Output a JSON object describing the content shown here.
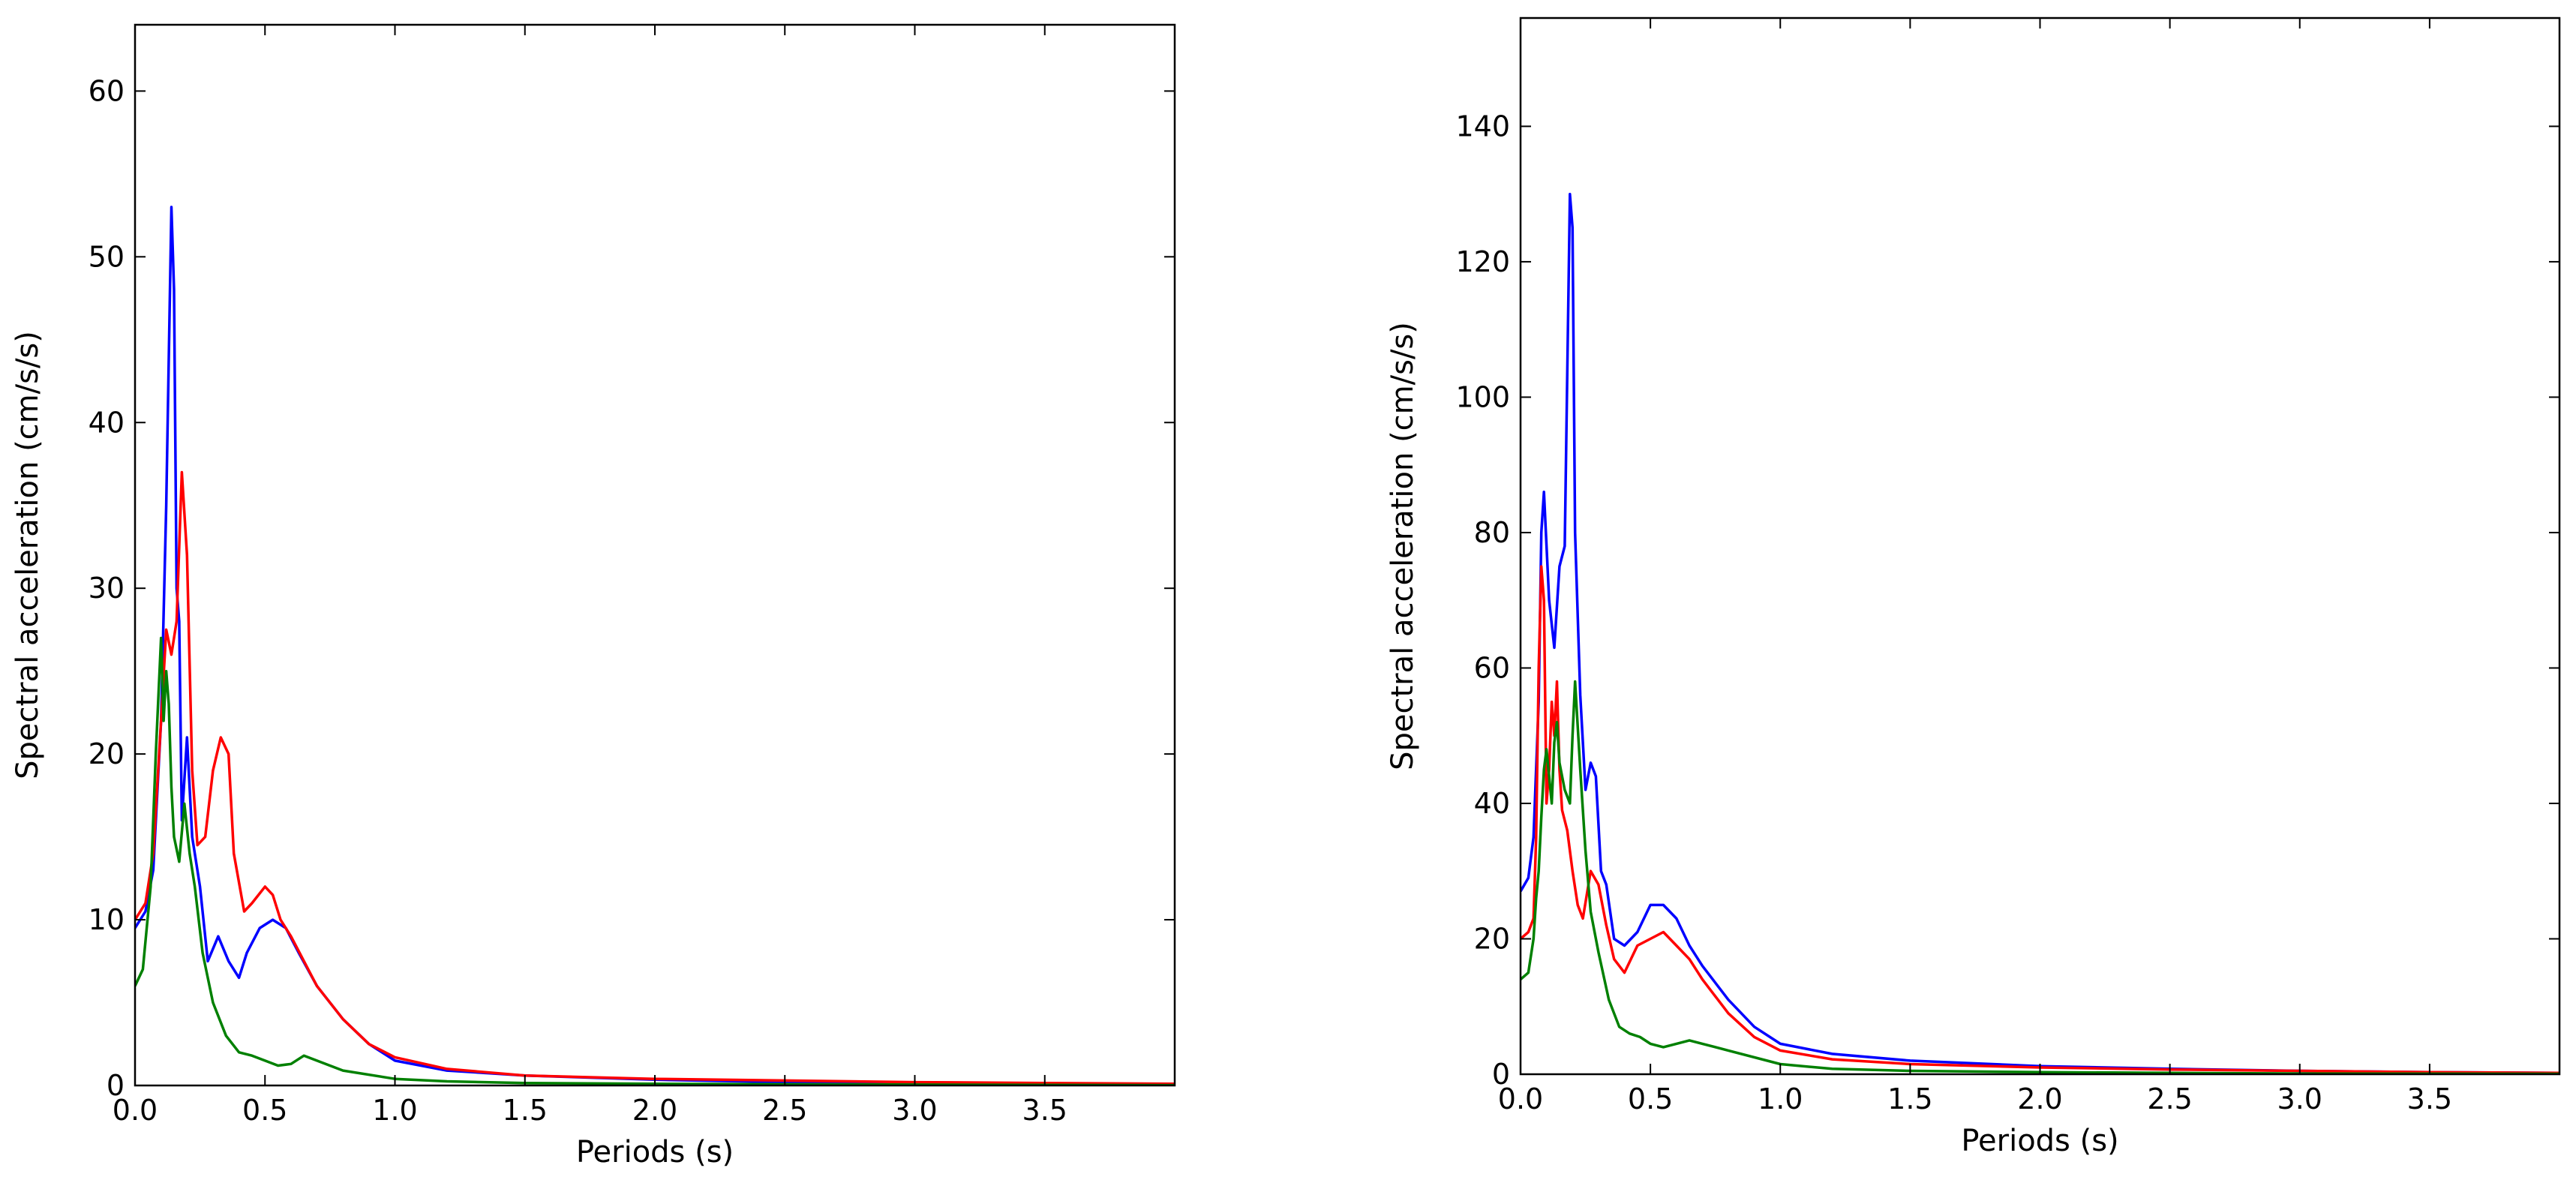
{
  "chart_data": [
    {
      "type": "line",
      "title": "",
      "xlabel": "Periods (s)",
      "ylabel": "Spectral acceleration (cm/s/s)",
      "xlim": [
        0,
        4.0
      ],
      "ylim": [
        0,
        64
      ],
      "xticks": [
        0.0,
        0.5,
        1.0,
        1.5,
        2.0,
        2.5,
        3.0,
        3.5
      ],
      "xtick_labels": [
        "0.0",
        "0.5",
        "1.0",
        "1.5",
        "2.0",
        "2.5",
        "3.0",
        "3.5"
      ],
      "yticks": [
        0,
        10,
        20,
        30,
        40,
        50,
        60
      ],
      "ytick_labels": [
        "0",
        "10",
        "20",
        "30",
        "40",
        "50",
        "60"
      ],
      "grid": false,
      "series": [
        {
          "color": "#0000ff",
          "x": [
            0.0,
            0.04,
            0.07,
            0.1,
            0.12,
            0.14,
            0.15,
            0.16,
            0.17,
            0.18,
            0.2,
            0.22,
            0.25,
            0.28,
            0.32,
            0.36,
            0.4,
            0.43,
            0.48,
            0.53,
            0.58,
            0.63,
            0.7,
            0.8,
            0.9,
            1.0,
            1.2,
            1.5,
            2.0,
            2.5,
            3.0,
            3.5,
            4.0
          ],
          "y": [
            9.5,
            10.5,
            13,
            22,
            35,
            53,
            48,
            30,
            28,
            16,
            21,
            15,
            12,
            7.5,
            9,
            7.5,
            6.5,
            8,
            9.5,
            10,
            9.5,
            8,
            6,
            4,
            2.5,
            1.5,
            0.9,
            0.6,
            0.35,
            0.2,
            0.15,
            0.1,
            0.05
          ]
        },
        {
          "color": "#ff0000",
          "x": [
            0.0,
            0.04,
            0.07,
            0.1,
            0.12,
            0.14,
            0.16,
            0.18,
            0.2,
            0.22,
            0.24,
            0.27,
            0.3,
            0.33,
            0.36,
            0.38,
            0.42,
            0.45,
            0.5,
            0.53,
            0.56,
            0.6,
            0.65,
            0.7,
            0.8,
            0.9,
            1.0,
            1.2,
            1.5,
            2.0,
            2.5,
            3.0,
            3.5,
            4.0
          ],
          "y": [
            10,
            11,
            14,
            22,
            27.5,
            26,
            28,
            37,
            32,
            19,
            14.5,
            15,
            19,
            21,
            20,
            14,
            10.5,
            11,
            12,
            11.5,
            10,
            9,
            7.5,
            6,
            4,
            2.5,
            1.7,
            1.0,
            0.6,
            0.4,
            0.3,
            0.2,
            0.15,
            0.1
          ]
        },
        {
          "color": "#008000",
          "x": [
            0.0,
            0.03,
            0.06,
            0.08,
            0.1,
            0.11,
            0.12,
            0.13,
            0.14,
            0.15,
            0.17,
            0.19,
            0.21,
            0.23,
            0.26,
            0.3,
            0.35,
            0.4,
            0.45,
            0.5,
            0.55,
            0.6,
            0.65,
            0.7,
            0.8,
            1.0,
            1.2,
            1.5,
            2.0,
            3.0,
            4.0
          ],
          "y": [
            6,
            7,
            12,
            20,
            27,
            22,
            25,
            23,
            18,
            15,
            13.5,
            17,
            14,
            12,
            8,
            5,
            3,
            2,
            1.8,
            1.5,
            1.2,
            1.3,
            1.8,
            1.5,
            0.9,
            0.4,
            0.25,
            0.15,
            0.1,
            0.05,
            0.02
          ]
        }
      ]
    },
    {
      "type": "line",
      "title": "",
      "xlabel": "Periods (s)",
      "ylabel": "Spectral acceleration (cm/s/s)",
      "xlim": [
        0,
        4.0
      ],
      "ylim": [
        0,
        156
      ],
      "xticks": [
        0.0,
        0.5,
        1.0,
        1.5,
        2.0,
        2.5,
        3.0,
        3.5
      ],
      "xtick_labels": [
        "0.0",
        "0.5",
        "1.0",
        "1.5",
        "2.0",
        "2.5",
        "3.0",
        "3.5"
      ],
      "yticks": [
        0,
        20,
        40,
        60,
        80,
        100,
        120,
        140
      ],
      "ytick_labels": [
        "0",
        "20",
        "40",
        "60",
        "80",
        "100",
        "120",
        "140"
      ],
      "grid": false,
      "series": [
        {
          "color": "#0000ff",
          "x": [
            0.0,
            0.03,
            0.05,
            0.07,
            0.08,
            0.09,
            0.11,
            0.13,
            0.15,
            0.17,
            0.19,
            0.2,
            0.21,
            0.23,
            0.25,
            0.27,
            0.29,
            0.31,
            0.33,
            0.36,
            0.4,
            0.45,
            0.5,
            0.55,
            0.6,
            0.65,
            0.7,
            0.8,
            0.9,
            1.0,
            1.2,
            1.5,
            2.0,
            2.5,
            3.0,
            3.5,
            4.0
          ],
          "y": [
            27,
            29,
            35,
            55,
            80,
            86,
            70,
            63,
            75,
            78,
            130,
            125,
            80,
            56,
            42,
            46,
            44,
            30,
            28,
            20,
            19,
            21,
            25,
            25,
            23,
            19,
            16,
            11,
            7,
            4.5,
            3,
            2,
            1.2,
            0.8,
            0.5,
            0.3,
            0.2
          ]
        },
        {
          "color": "#ff0000",
          "x": [
            0.0,
            0.03,
            0.05,
            0.06,
            0.07,
            0.08,
            0.09,
            0.1,
            0.11,
            0.12,
            0.13,
            0.14,
            0.15,
            0.16,
            0.18,
            0.2,
            0.22,
            0.24,
            0.27,
            0.3,
            0.33,
            0.36,
            0.4,
            0.45,
            0.5,
            0.55,
            0.6,
            0.65,
            0.7,
            0.8,
            0.9,
            1.0,
            1.2,
            1.5,
            2.0,
            2.5,
            3.0,
            3.5,
            4.0
          ],
          "y": [
            20,
            21,
            23,
            35,
            60,
            75,
            70,
            40,
            45,
            55,
            50,
            58,
            45,
            39,
            36,
            30,
            25,
            23,
            30,
            28,
            22,
            17,
            15,
            19,
            20,
            21,
            19,
            17,
            14,
            9,
            5.5,
            3.5,
            2.2,
            1.5,
            1.0,
            0.7,
            0.5,
            0.3,
            0.2
          ]
        },
        {
          "color": "#008000",
          "x": [
            0.0,
            0.03,
            0.05,
            0.06,
            0.07,
            0.08,
            0.09,
            0.1,
            0.11,
            0.12,
            0.13,
            0.14,
            0.15,
            0.17,
            0.19,
            0.2,
            0.21,
            0.23,
            0.25,
            0.27,
            0.3,
            0.34,
            0.38,
            0.42,
            0.46,
            0.5,
            0.55,
            0.6,
            0.65,
            0.7,
            0.8,
            1.0,
            1.2,
            1.5,
            2.0,
            3.0,
            4.0
          ],
          "y": [
            14,
            15,
            20,
            26,
            30,
            38,
            45,
            48,
            44,
            40,
            49,
            52,
            46,
            42,
            40,
            50,
            58,
            45,
            33,
            24,
            18,
            11,
            7,
            6,
            5.5,
            4.5,
            4,
            4.5,
            5,
            4.5,
            3.5,
            1.5,
            0.8,
            0.5,
            0.3,
            0.1,
            0.05
          ]
        }
      ]
    }
  ]
}
